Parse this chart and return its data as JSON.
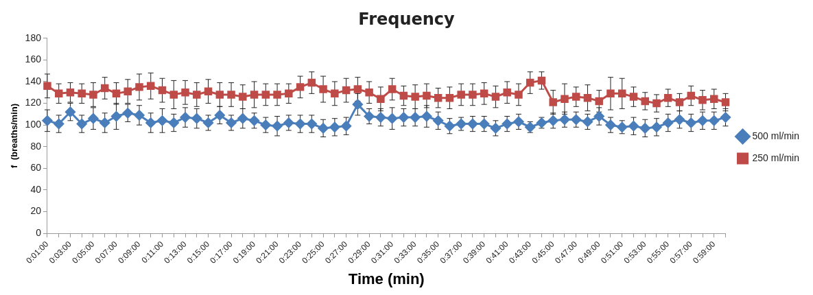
{
  "chart_data": {
    "type": "line",
    "title": "Frequency",
    "xlabel": "Time (min)",
    "ylabel": "f  (breaths/min)",
    "categories": [
      "0:01:00",
      null,
      "0:03:00",
      null,
      "0:05:00",
      null,
      "0:07:00",
      null,
      "0:09:00",
      null,
      "0:11:00",
      null,
      "0:13:00",
      null,
      "0:15:00",
      null,
      "0:17:00",
      null,
      "0:19:00",
      null,
      "0:21:00",
      null,
      "0:23:00",
      null,
      "0:25:00",
      null,
      "0:27:00",
      null,
      "0:29:00",
      null,
      "0:31:00",
      null,
      "0:33:00",
      null,
      "0:35:00",
      null,
      "0:37:00",
      null,
      "0:39:00",
      null,
      "0:41:00",
      null,
      "0:43:00",
      null,
      "0:45:00",
      null,
      "0:47:00",
      null,
      "0:49:00",
      null,
      "0:51:00",
      null,
      "0:53:00",
      null,
      "0:55:00",
      null,
      "0:57:00",
      null,
      "0:59:00",
      null
    ],
    "series": [
      {
        "name": "500 ml/min",
        "color": "#4a7ebb",
        "marker": "diamond",
        "values": [
          104,
          101,
          112,
          101,
          106,
          102,
          108,
          111,
          109,
          102,
          104,
          102,
          107,
          106,
          102,
          109,
          102,
          106,
          104,
          100,
          99,
          102,
          101,
          101,
          97,
          98,
          99,
          119,
          108,
          107,
          106,
          107,
          107,
          108,
          104,
          99,
          101,
          101,
          101,
          97,
          101,
          103,
          98,
          102,
          104,
          105,
          105,
          103,
          108,
          100,
          98,
          99,
          97,
          98,
          102,
          105,
          102,
          104,
          104,
          107
        ],
        "errors": [
          10,
          8,
          8,
          8,
          10,
          9,
          12,
          8,
          9,
          9,
          11,
          8,
          9,
          9,
          7,
          8,
          7,
          9,
          7,
          7,
          9,
          7,
          8,
          8,
          8,
          8,
          8,
          10,
          7,
          8,
          10,
          8,
          8,
          10,
          8,
          7,
          6,
          7,
          7,
          7,
          7,
          7,
          5,
          5,
          7,
          7,
          7,
          7,
          8,
          7,
          6,
          8,
          8,
          8,
          8,
          8,
          8,
          8,
          8,
          8
        ]
      },
      {
        "name": "250 ml/min",
        "color": "#be4b48",
        "marker": "square",
        "values": [
          136,
          129,
          130,
          129,
          128,
          134,
          129,
          131,
          135,
          136,
          132,
          128,
          130,
          128,
          131,
          128,
          128,
          126,
          128,
          128,
          128,
          129,
          135,
          139,
          133,
          129,
          132,
          133,
          130,
          124,
          133,
          127,
          126,
          127,
          125,
          125,
          128,
          128,
          129,
          126,
          130,
          128,
          139,
          141,
          121,
          124,
          126,
          125,
          122,
          129,
          129,
          126,
          122,
          120,
          125,
          121,
          127,
          123,
          124,
          121
        ],
        "errors": [
          11,
          9,
          9,
          9,
          11,
          10,
          10,
          11,
          12,
          12,
          11,
          13,
          11,
          11,
          11,
          11,
          11,
          11,
          12,
          10,
          10,
          9,
          10,
          10,
          12,
          11,
          11,
          11,
          10,
          11,
          10,
          9,
          11,
          11,
          9,
          10,
          10,
          10,
          10,
          10,
          10,
          10,
          10,
          8,
          11,
          14,
          9,
          12,
          10,
          15,
          14,
          9,
          8,
          8,
          8,
          8,
          9,
          9,
          9,
          8
        ]
      }
    ],
    "ylim": [
      0,
      180
    ],
    "yticks": [
      0,
      20,
      40,
      60,
      80,
      100,
      120,
      140,
      160,
      180
    ],
    "legend": "right",
    "line_style": "solid"
  }
}
